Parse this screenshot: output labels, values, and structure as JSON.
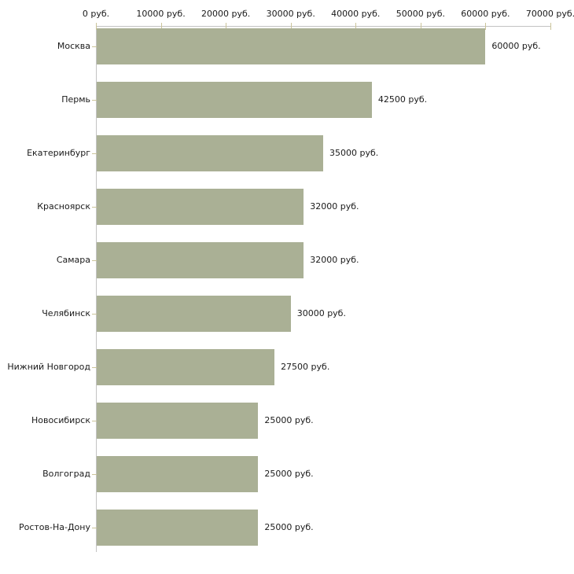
{
  "chart_data": {
    "type": "bar",
    "orientation": "horizontal",
    "title": "",
    "xlabel": "",
    "ylabel": "",
    "unit": "руб.",
    "xlim": [
      0,
      70000
    ],
    "grid": false,
    "legend": false,
    "bar_color": "#aab095",
    "axis_color": "#c3c3c3",
    "tick_color": "#cbc49a",
    "text_color": "#1a1a1a",
    "categories": [
      "Москва",
      "Пермь",
      "Екатеринбург",
      "Красноярск",
      "Самара",
      "Челябинск",
      "Нижний Новгород",
      "Новосибирск",
      "Волгоград",
      "Ростов-На-Дону"
    ],
    "values": [
      60000,
      42500,
      35000,
      32000,
      32000,
      30000,
      27500,
      25000,
      25000,
      25000
    ],
    "value_labels": [
      "60000 руб.",
      "42500 руб.",
      "35000 руб.",
      "32000 руб.",
      "32000 руб.",
      "30000 руб.",
      "27500 руб.",
      "25000 руб.",
      "25000 руб.",
      "25000 руб."
    ],
    "x_ticks": [
      {
        "value": 0,
        "label": "0 руб."
      },
      {
        "value": 10000,
        "label": "10000 руб."
      },
      {
        "value": 20000,
        "label": "20000 руб."
      },
      {
        "value": 30000,
        "label": "30000 руб."
      },
      {
        "value": 40000,
        "label": "40000 руб."
      },
      {
        "value": 50000,
        "label": "50000 руб."
      },
      {
        "value": 60000,
        "label": "60000 руб."
      },
      {
        "value": 70000,
        "label": "70000 руб."
      }
    ]
  }
}
